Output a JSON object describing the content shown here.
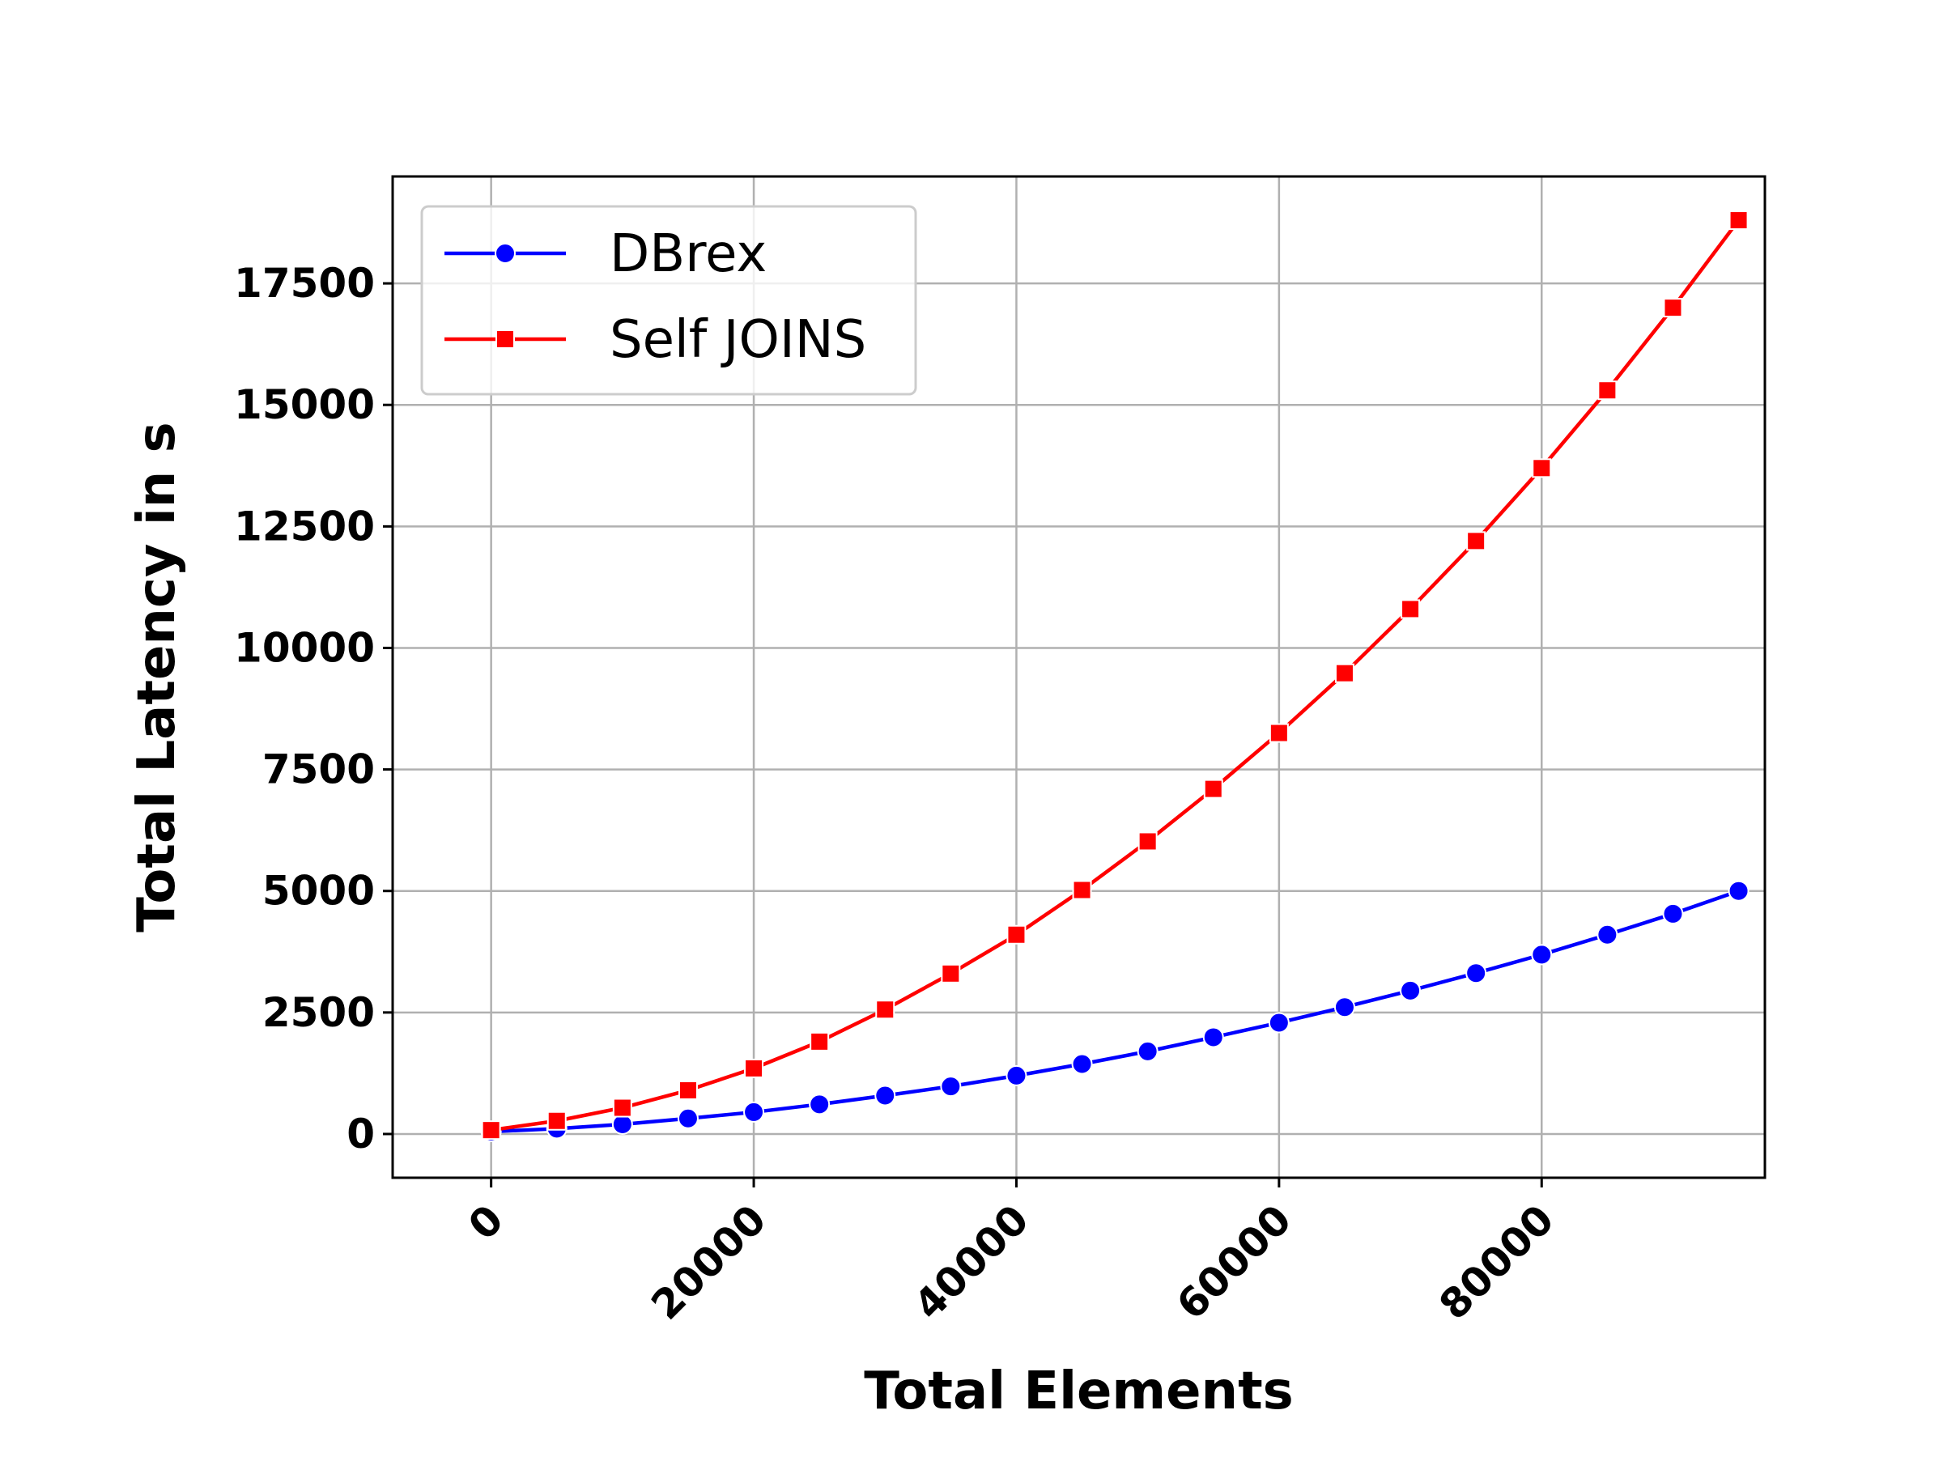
{
  "chart_data": {
    "type": "line",
    "title": "",
    "xlabel": "Total Elements",
    "ylabel": "Total Latency in s",
    "xlim": [
      -7500,
      97000
    ],
    "ylim": [
      -900,
      19700
    ],
    "xticks": [
      0,
      20000,
      40000,
      60000,
      80000
    ],
    "xtick_labels": [
      "0",
      "20000",
      "40000",
      "60000",
      "80000"
    ],
    "yticks": [
      0,
      2500,
      5000,
      7500,
      10000,
      12500,
      15000,
      17500
    ],
    "ytick_labels": [
      "0",
      "2500",
      "5000",
      "7500",
      "10000",
      "12500",
      "15000",
      "17500"
    ],
    "grid": true,
    "legend_position": "top-left",
    "x": [
      0,
      5000,
      10000,
      15000,
      20000,
      25000,
      30000,
      35000,
      40000,
      45000,
      50000,
      55000,
      60000,
      65000,
      70000,
      75000,
      80000,
      85000,
      90000,
      95000
    ],
    "series": [
      {
        "name": "DBrex",
        "color": "#0000ff",
        "marker": "circle",
        "values": [
          50,
          110,
          200,
          320,
          450,
          610,
          790,
          980,
          1200,
          1440,
          1700,
          1990,
          2290,
          2610,
          2950,
          3310,
          3690,
          4100,
          4530,
          5000
        ]
      },
      {
        "name": "Self JOINS",
        "color": "#ff0000",
        "marker": "square",
        "values": [
          80,
          270,
          540,
          900,
          1350,
          1900,
          2560,
          3300,
          4100,
          5020,
          6020,
          7100,
          8250,
          9480,
          10800,
          12200,
          13700,
          15300,
          17000,
          18800
        ]
      }
    ]
  }
}
